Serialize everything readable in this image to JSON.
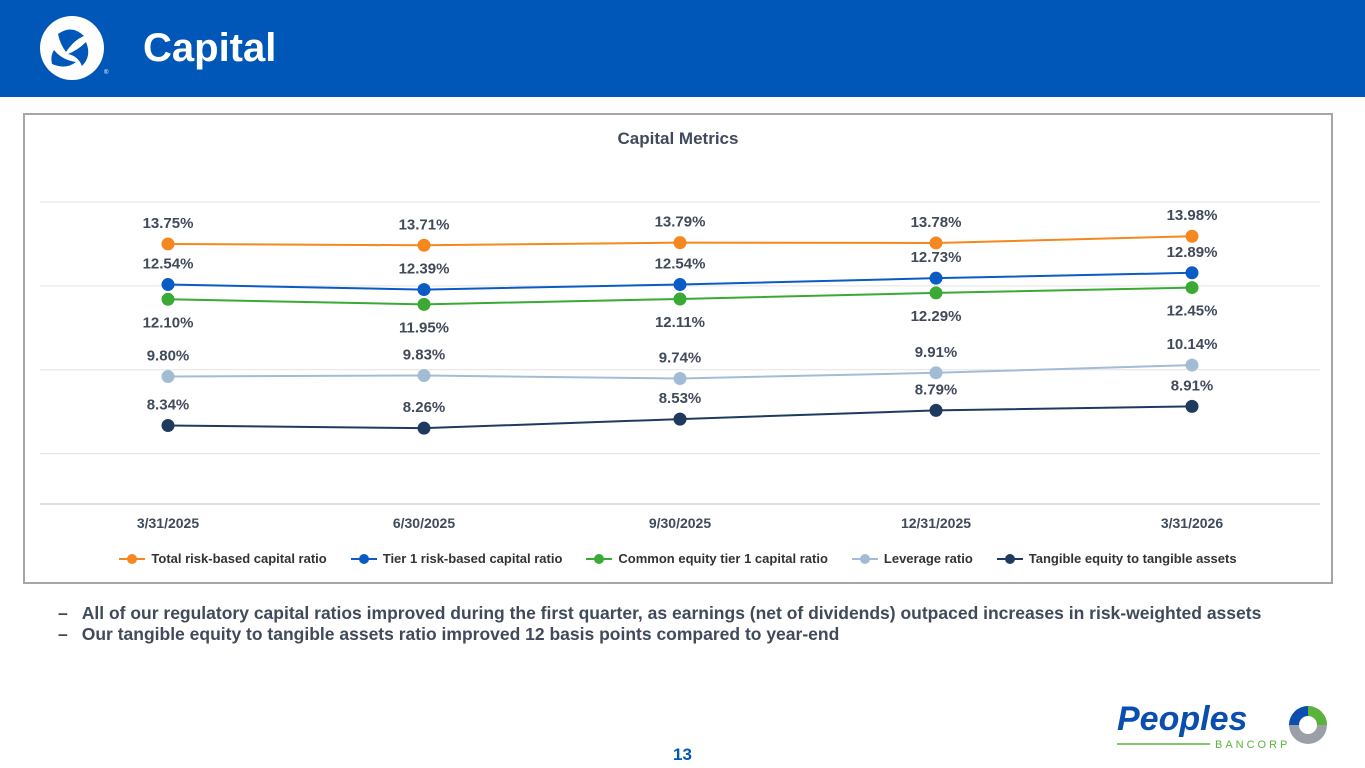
{
  "header": {
    "title": "Capital"
  },
  "chart_data": {
    "type": "line",
    "title": "Capital Metrics",
    "categories": [
      "3/31/2025",
      "6/30/2025",
      "9/30/2025",
      "12/31/2025",
      "3/31/2026"
    ],
    "ylim": [
      6,
      15
    ],
    "gridlines": [
      7.5,
      10,
      12.5,
      15
    ],
    "legend_position": "bottom",
    "series": [
      {
        "name": "Total risk-based capital ratio",
        "color": "#f5871f",
        "label_pos": "above",
        "values": [
          13.75,
          13.71,
          13.79,
          13.78,
          13.98
        ],
        "labels": [
          "13.75%",
          "13.71%",
          "13.79%",
          "13.78%",
          "13.98%"
        ]
      },
      {
        "name": "Tier 1 risk-based capital ratio",
        "color": "#0a5bc4",
        "label_pos": "above",
        "values": [
          12.54,
          12.39,
          12.54,
          12.73,
          12.89
        ],
        "labels": [
          "12.54%",
          "12.39%",
          "12.54%",
          "12.73%",
          "12.89%"
        ]
      },
      {
        "name": "Common equity tier 1 capital ratio",
        "color": "#3aaa35",
        "label_pos": "below",
        "values": [
          12.1,
          11.95,
          12.11,
          12.29,
          12.45
        ],
        "labels": [
          "12.10%",
          "11.95%",
          "12.11%",
          "12.29%",
          "12.45%"
        ]
      },
      {
        "name": "Leverage ratio",
        "color": "#a3bcd6",
        "label_pos": "above",
        "values": [
          9.8,
          9.83,
          9.74,
          9.91,
          10.14
        ],
        "labels": [
          "9.80%",
          "9.83%",
          "9.74%",
          "9.91%",
          "10.14%"
        ]
      },
      {
        "name": "Tangible equity to tangible assets",
        "color": "#1f3a5f",
        "label_pos": "above",
        "values": [
          8.34,
          8.26,
          8.53,
          8.79,
          8.91
        ],
        "labels": [
          "8.34%",
          "8.26%",
          "8.53%",
          "8.79%",
          "8.91%"
        ]
      }
    ]
  },
  "bullets": [
    {
      "dash": "–",
      "text": "All of our regulatory capital ratios improved during the first quarter, as earnings (net of dividends) outpaced increases in risk-weighted assets"
    },
    {
      "dash": "–",
      "text": "Our tangible equity to tangible assets ratio improved 12 basis points compared to year-end"
    }
  ],
  "footer": {
    "page": "13",
    "logo_text": "Peoples",
    "logo_sub": "BANCORP"
  }
}
